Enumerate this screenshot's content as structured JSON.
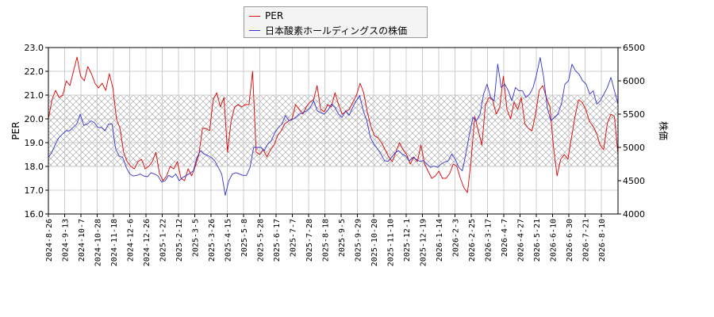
{
  "chart_data": {
    "type": "line",
    "legend": {
      "placement": "top-center",
      "entries": [
        {
          "name": "PER",
          "color": "#dd0000"
        },
        {
          "name": "日本酸素ホールディングスの株価",
          "color": "#3333cc"
        }
      ]
    },
    "left_axis": {
      "label": "PER",
      "ylim": [
        16.0,
        23.0
      ],
      "ticks": [
        "16.0",
        "17.0",
        "18.0",
        "19.0",
        "20.0",
        "21.0",
        "22.0",
        "23.0"
      ]
    },
    "right_axis": {
      "label": "株価",
      "ylim": [
        4000,
        6500
      ],
      "ticks": [
        "4000",
        "4500",
        "5000",
        "5500",
        "6000",
        "6500"
      ]
    },
    "x_tick_labels": [
      "2024-8-26",
      "2024-9-13",
      "2024-10-7",
      "2024-10-28",
      "2024-11-18",
      "2024-12-6",
      "2024-12-26",
      "2025-1-22",
      "2025-2-12",
      "2025-3-5",
      "2025-3-26",
      "2025-4-15",
      "2025-5-8",
      "2025-5-28",
      "2025-6-17",
      "2025-7-7",
      "2025-7-28",
      "2025-8-18",
      "2025-9-5",
      "2025-9-29",
      "2025-10-20",
      "2025-11-10",
      "2025-12-1",
      "2025-12-19",
      "2026-1-14",
      "2026-2-3",
      "2026-2-25",
      "2026-3-17",
      "2026-4-7",
      "2026-4-27",
      "2026-5-21",
      "2026-6-10",
      "2026-6-30",
      "2026-7-21",
      "2026-8-10"
    ],
    "band": {
      "from": 18.0,
      "to": 21.0,
      "pattern": "crosshatch"
    },
    "grid": true,
    "series": [
      {
        "name": "PER",
        "axis": "left",
        "color": "#dd0000",
        "values": [
          20.0,
          20.8,
          21.2,
          20.9,
          21.0,
          21.6,
          21.4,
          22.0,
          22.6,
          21.8,
          21.6,
          22.2,
          21.9,
          21.5,
          21.3,
          21.5,
          21.2,
          21.9,
          21.3,
          20.0,
          19.6,
          18.6,
          18.2,
          18.0,
          17.9,
          18.2,
          18.3,
          17.9,
          18.0,
          18.2,
          18.6,
          17.7,
          17.4,
          17.6,
          18.0,
          17.9,
          18.2,
          17.5,
          17.4,
          17.9,
          17.6,
          18.0,
          18.5,
          19.6,
          19.6,
          19.5,
          20.8,
          21.1,
          20.5,
          20.9,
          18.6,
          19.9,
          20.5,
          20.6,
          20.5,
          20.6,
          20.6,
          22.0,
          18.6,
          18.5,
          18.7,
          18.4,
          18.7,
          18.9,
          19.3,
          19.5,
          19.8,
          19.9,
          20.0,
          20.6,
          20.4,
          20.2,
          20.5,
          20.7,
          20.8,
          21.4,
          20.4,
          20.3,
          20.6,
          20.5,
          21.1,
          20.6,
          20.2,
          20.3,
          20.4,
          20.7,
          21.0,
          21.5,
          21.1,
          20.3,
          19.7,
          19.3,
          19.2,
          19.0,
          18.7,
          18.4,
          18.2,
          18.6,
          19.0,
          18.7,
          18.5,
          18.1,
          18.4,
          18.2,
          18.9,
          18.1,
          17.8,
          17.5,
          17.6,
          17.8,
          17.5,
          17.5,
          17.7,
          18.1,
          18.0,
          17.5,
          17.1,
          16.9,
          18.3,
          20.1,
          19.5,
          18.9,
          20.6,
          20.9,
          20.8,
          20.2,
          20.5,
          21.8,
          20.4,
          20.0,
          20.7,
          20.4,
          20.9,
          19.8,
          19.6,
          19.5,
          20.2,
          21.2,
          21.4,
          20.9,
          20.5,
          18.8,
          17.6,
          18.3,
          18.5,
          18.3,
          19.2,
          20.1,
          20.8,
          20.7,
          20.4,
          19.9,
          19.7,
          19.4,
          18.9,
          18.7,
          19.8,
          20.2,
          20.1,
          18.5
        ]
      },
      {
        "name": "日本酸素ホールディングスの株価",
        "axis": "right",
        "color": "#3333cc",
        "values": [
          4850,
          4930,
          5050,
          5150,
          5200,
          5250,
          5250,
          5300,
          5350,
          5500,
          5330,
          5350,
          5400,
          5370,
          5300,
          5300,
          5250,
          5350,
          5350,
          4980,
          4870,
          4850,
          4700,
          4600,
          4570,
          4580,
          4600,
          4570,
          4560,
          4620,
          4600,
          4570,
          4480,
          4500,
          4580,
          4550,
          4600,
          4500,
          4550,
          4580,
          4610,
          4650,
          4850,
          4950,
          4900,
          4880,
          4850,
          4800,
          4700,
          4600,
          4280,
          4500,
          4600,
          4620,
          4600,
          4580,
          4580,
          4700,
          5000,
          5000,
          5000,
          4950,
          5050,
          5100,
          5220,
          5300,
          5350,
          5480,
          5400,
          5420,
          5450,
          5500,
          5520,
          5550,
          5600,
          5700,
          5550,
          5520,
          5500,
          5560,
          5650,
          5600,
          5500,
          5450,
          5550,
          5480,
          5600,
          5700,
          5780,
          5550,
          5400,
          5150,
          5050,
          4980,
          4900,
          4800,
          4790,
          4850,
          4920,
          4950,
          4900,
          4870,
          4800,
          4850,
          4820,
          4790,
          4800,
          4750,
          4700,
          4720,
          4700,
          4750,
          4780,
          4800,
          4900,
          4820,
          4700,
          4650,
          4900,
          5200,
          5450,
          5400,
          5500,
          5800,
          5950,
          5750,
          5700,
          6250,
          5900,
          5950,
          5850,
          5700,
          5900,
          5850,
          5850,
          5750,
          5800,
          5900,
          6100,
          6350,
          6050,
          5600,
          5400,
          5450,
          5500,
          5650,
          5950,
          6000,
          6250,
          6150,
          6100,
          6000,
          5950,
          5800,
          5850,
          5650,
          5700,
          5800,
          5900,
          6050,
          5850,
          5650
        ]
      }
    ]
  }
}
